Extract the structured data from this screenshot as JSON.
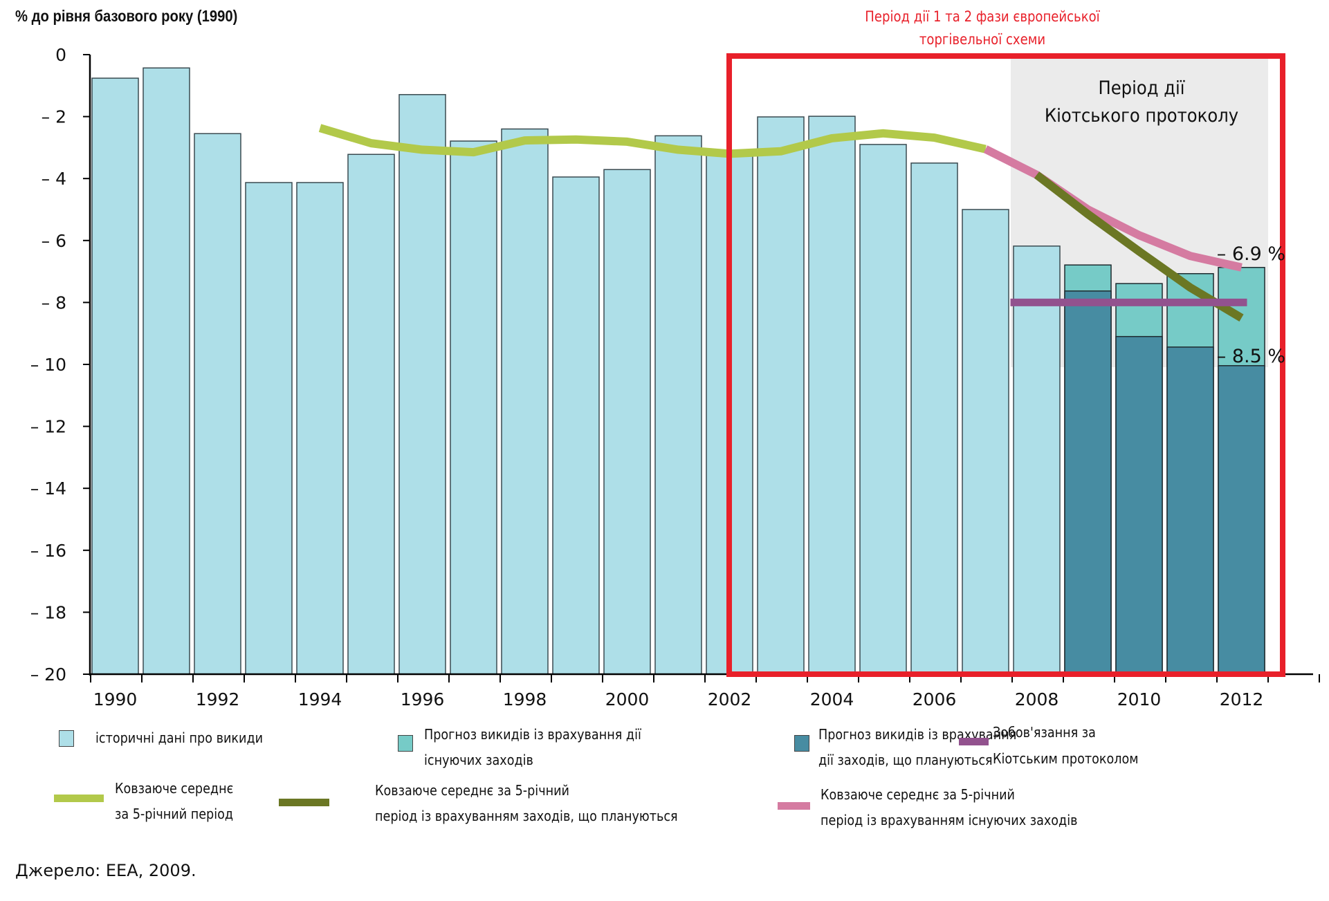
{
  "chart_data": {
    "type": "bar",
    "title": "% до рівня базового року (1990)",
    "xlabel": "",
    "ylabel": "% до рівня базового року (1990)",
    "ylim": [
      -20,
      0
    ],
    "yticks": [
      0,
      -2,
      -4,
      -6,
      -8,
      -10,
      -12,
      -14,
      -16,
      -18,
      -20
    ],
    "ytick_labels": [
      "0",
      "– 2",
      "– 4",
      "– 6",
      "– 8",
      "– 10",
      "– 12",
      "– 14",
      "– 16",
      "– 18",
      "– 20"
    ],
    "categories": [
      "1990",
      "1991",
      "1992",
      "1993",
      "1994",
      "1995",
      "1996",
      "1997",
      "1998",
      "1999",
      "2000",
      "2001",
      "2002",
      "2003",
      "2004",
      "2005",
      "2006",
      "2007",
      "2008",
      "2009",
      "2010",
      "2011",
      "2012"
    ],
    "xtick_labels": [
      "1990",
      "1992",
      "1994",
      "1996",
      "1998",
      "2000",
      "2002",
      "2004",
      "2006",
      "2008",
      "2010",
      "2012"
    ],
    "series": [
      {
        "name": "історичні дані про викиди",
        "kind": "bar",
        "color": "#aedfe8",
        "values": [
          -0.76,
          -0.43,
          -2.55,
          -4.13,
          -4.13,
          -3.22,
          -1.29,
          -2.79,
          -2.4,
          -3.95,
          -3.71,
          -2.62,
          -3.1,
          -2.01,
          -1.99,
          -2.9,
          -3.5,
          -5.0,
          -6.18,
          null,
          null,
          null,
          null
        ]
      },
      {
        "name": "Прогноз викидів із врахування дії існуючих заходів",
        "kind": "bar",
        "color": "#76cbc7",
        "values": [
          null,
          null,
          null,
          null,
          null,
          null,
          null,
          null,
          null,
          null,
          null,
          null,
          null,
          null,
          null,
          null,
          null,
          null,
          null,
          -6.79,
          -7.39,
          -7.07,
          -6.87
        ]
      },
      {
        "name": "Прогноз викидів із врахування дії заходів, що плануються",
        "kind": "bar",
        "color": "#478ca2",
        "values": [
          null,
          null,
          null,
          null,
          null,
          null,
          null,
          null,
          null,
          null,
          null,
          null,
          null,
          null,
          null,
          null,
          null,
          null,
          null,
          -7.63,
          -9.1,
          -9.44,
          -10.04
        ]
      },
      {
        "name": "Зобов'язання за Кіотським протоколом",
        "kind": "line",
        "color": "#92528e",
        "x": [
          "2008",
          "2012"
        ],
        "values": [
          -8.0,
          -8.0
        ]
      },
      {
        "name": "Ковзаюче середнє за 5-річний період",
        "kind": "line",
        "color": "#b2c94a",
        "x": [
          "1994",
          "1995",
          "1996",
          "1997",
          "1998",
          "1999",
          "2000",
          "2001",
          "2002",
          "2003",
          "2004",
          "2005",
          "2006",
          "2007"
        ],
        "values": [
          -2.37,
          -2.86,
          -3.07,
          -3.15,
          -2.77,
          -2.74,
          -2.81,
          -3.07,
          -3.2,
          -3.12,
          -2.7,
          -2.54,
          -2.68,
          -3.05
        ]
      },
      {
        "name": "Ковзаюче середнє за 5-річний період із врахуванням існуючих заходів",
        "kind": "line",
        "color": "#d57ba1",
        "x": [
          "2007",
          "2008",
          "2009",
          "2010",
          "2011",
          "2012"
        ],
        "values": [
          -3.05,
          -3.88,
          -5.0,
          -5.83,
          -6.5,
          -6.87
        ]
      },
      {
        "name": "Ковзаюче середнє за 5-річний період із врахуванням заходів, що плануються",
        "kind": "line",
        "color": "#6b7724",
        "x": [
          "2008",
          "2009",
          "2010",
          "2011",
          "2012"
        ],
        "values": [
          -3.88,
          -5.15,
          -6.35,
          -7.52,
          -8.5
        ]
      }
    ],
    "annotations": [
      {
        "text": "– 6.9 %",
        "value": -6.9,
        "x": "2012"
      },
      {
        "text": "– 8.5 %",
        "value": -8.5,
        "x": "2012"
      },
      {
        "text": "Період дії Кіотського протоколу",
        "x_range": [
          "2008",
          "2012"
        ],
        "shaded": true,
        "shade_color": "#ebebeb"
      },
      {
        "text": "Період дії 1 та 2 фази європейської торгівельної схеми",
        "x_range": [
          "2003",
          "2012"
        ],
        "box_color": "#e8202a"
      }
    ],
    "grid": false,
    "legend_position": "bottom"
  },
  "labels": {
    "y_title": "% до рівня базового року (1990)",
    "ets_line1": "Період дії 1 та 2 фази європейської",
    "ets_line2": "торгівельної схеми",
    "kyoto_line1": "Період дії",
    "kyoto_line2": "Кіотського протоколу",
    "annot_69": "– 6.9 %",
    "annot_85": "– 8.5 %",
    "source": "Джерело: ЕЕА, 2009."
  },
  "legend": {
    "historical": "історичні дані про викиди",
    "existing_l1": "Прогноз викидів із врахування дії",
    "existing_l2": "існуючих заходів",
    "planned_l1": "Прогноз викидів із врахування",
    "planned_l2": "дії заходів, що плануються",
    "kyoto_l1": "Зобов'язання за",
    "kyoto_l2": "Кіотським протоколом",
    "ma_l1": "Ковзаюче середнє",
    "ma_l2": "за 5-річний період",
    "ma_planned_l1": "Ковзаюче середнє за 5-річний",
    "ma_planned_l2": "період із врахуванням заходів, що плануються",
    "ma_existing_l1": "Ковзаюче середнє за 5-річний",
    "ma_existing_l2": "період із врахуванням існуючих заходів"
  }
}
